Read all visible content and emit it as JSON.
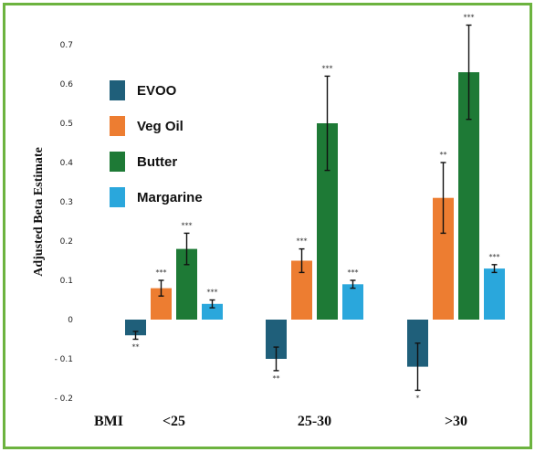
{
  "chart_data": {
    "type": "bar",
    "title": "",
    "xlabel": "BMI",
    "ylabel": "Adjusted Beta Estimate",
    "ylim": [
      -0.2,
      0.7
    ],
    "yticks": [
      -0.2,
      -0.1,
      0,
      0.1,
      0.2,
      0.3,
      0.4,
      0.5,
      0.6,
      0.7
    ],
    "ytick_labels": [
      "- 0.2",
      "- 0.1",
      "0",
      "0.1",
      "0.2",
      "0.3",
      "0.4",
      "0.5",
      "0.6",
      "0.7"
    ],
    "categories": [
      "<25",
      "25-30",
      ">30"
    ],
    "legend_position": "top-left",
    "grid": false,
    "error_bars": true,
    "series": [
      {
        "name": "EVOO",
        "color": "#1f5f7a",
        "values": [
          -0.04,
          -0.1,
          -0.12
        ],
        "errors": [
          0.01,
          0.03,
          0.06
        ],
        "significance": [
          "**",
          "**",
          "*"
        ]
      },
      {
        "name": "Veg Oil",
        "color": "#ed7d31",
        "values": [
          0.08,
          0.15,
          0.31
        ],
        "errors": [
          0.02,
          0.03,
          0.09
        ],
        "significance": [
          "***",
          "***",
          "**"
        ]
      },
      {
        "name": "Butter",
        "color": "#1e7a36",
        "values": [
          0.18,
          0.5,
          0.63
        ],
        "errors": [
          0.04,
          0.12,
          0.12
        ],
        "significance": [
          "***",
          "***",
          "***"
        ]
      },
      {
        "name": "Margarine",
        "color": "#2aa7dc",
        "values": [
          0.04,
          0.09,
          0.13
        ],
        "errors": [
          0.01,
          0.01,
          0.01
        ],
        "significance": [
          "***",
          "***",
          "***"
        ]
      }
    ]
  }
}
